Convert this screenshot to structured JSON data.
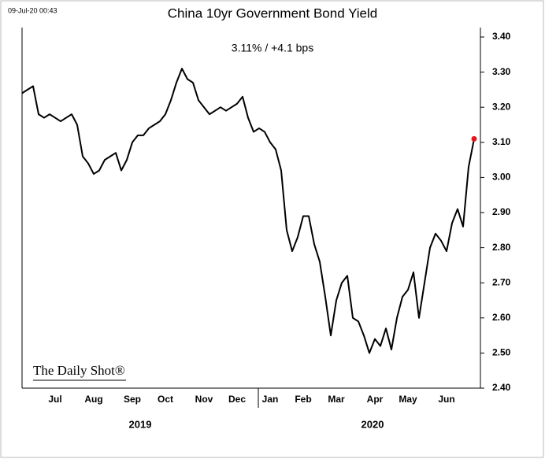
{
  "chart_data": {
    "type": "line",
    "title": "China 10yr Government Bond Yield",
    "subtitle": "3.11%  /  +4.1 bps",
    "timestamp": "09-Jul-20 00:43",
    "watermark": "The Daily Shot®",
    "year_labels": [
      "2019",
      "2020"
    ],
    "categories": [
      null,
      null,
      null,
      null,
      null,
      null,
      "Jul",
      null,
      null,
      null,
      null,
      null,
      null,
      "Aug",
      null,
      null,
      null,
      null,
      null,
      null,
      "Sep",
      null,
      null,
      null,
      null,
      null,
      "Oct",
      null,
      null,
      null,
      null,
      null,
      null,
      "Nov",
      null,
      null,
      null,
      null,
      null,
      "Dec",
      null,
      null,
      null,
      null,
      null,
      "Jan",
      null,
      null,
      null,
      null,
      null,
      "Feb",
      null,
      null,
      null,
      null,
      null,
      "Mar",
      null,
      null,
      null,
      null,
      null,
      null,
      "Apr",
      null,
      null,
      null,
      null,
      null,
      "May",
      null,
      null,
      null,
      null,
      null,
      null,
      "Jun",
      null,
      null,
      null,
      null,
      null
    ],
    "series": [
      {
        "name": "China 10yr Government Bond Yield",
        "color": "#000000",
        "values": [
          3.24,
          3.25,
          3.26,
          3.18,
          3.17,
          3.18,
          3.17,
          3.16,
          3.17,
          3.18,
          3.15,
          3.06,
          3.04,
          3.01,
          3.02,
          3.05,
          3.06,
          3.07,
          3.02,
          3.05,
          3.1,
          3.12,
          3.12,
          3.14,
          3.15,
          3.16,
          3.18,
          3.22,
          3.27,
          3.31,
          3.28,
          3.27,
          3.22,
          3.2,
          3.18,
          3.19,
          3.2,
          3.19,
          3.2,
          3.21,
          3.23,
          3.17,
          3.13,
          3.14,
          3.13,
          3.1,
          3.08,
          3.02,
          2.85,
          2.79,
          2.83,
          2.89,
          2.89,
          2.81,
          2.76,
          2.66,
          2.55,
          2.65,
          2.7,
          2.72,
          2.6,
          2.59,
          2.55,
          2.5,
          2.54,
          2.52,
          2.57,
          2.51,
          2.6,
          2.66,
          2.68,
          2.73,
          2.6,
          2.7,
          2.8,
          2.84,
          2.82,
          2.79,
          2.87,
          2.91,
          2.86,
          3.03,
          3.11
        ]
      }
    ],
    "last_marker_color": "#e8141c",
    "ylim": [
      2.4,
      3.4
    ],
    "yticks": [
      {
        "value": 2.4,
        "label": "2.40"
      },
      {
        "value": 2.5,
        "label": "2.50"
      },
      {
        "value": 2.6,
        "label": "2.60"
      },
      {
        "value": 2.7,
        "label": "2.70"
      },
      {
        "value": 2.8,
        "label": "2.80"
      },
      {
        "value": 2.9,
        "label": "2.90"
      },
      {
        "value": 3.0,
        "label": "3.00"
      },
      {
        "value": 3.1,
        "label": "3.10"
      },
      {
        "value": 3.2,
        "label": "3.20"
      },
      {
        "value": 3.3,
        "label": "3.30"
      },
      {
        "value": 3.4,
        "label": "3.40"
      }
    ],
    "grid": false
  }
}
